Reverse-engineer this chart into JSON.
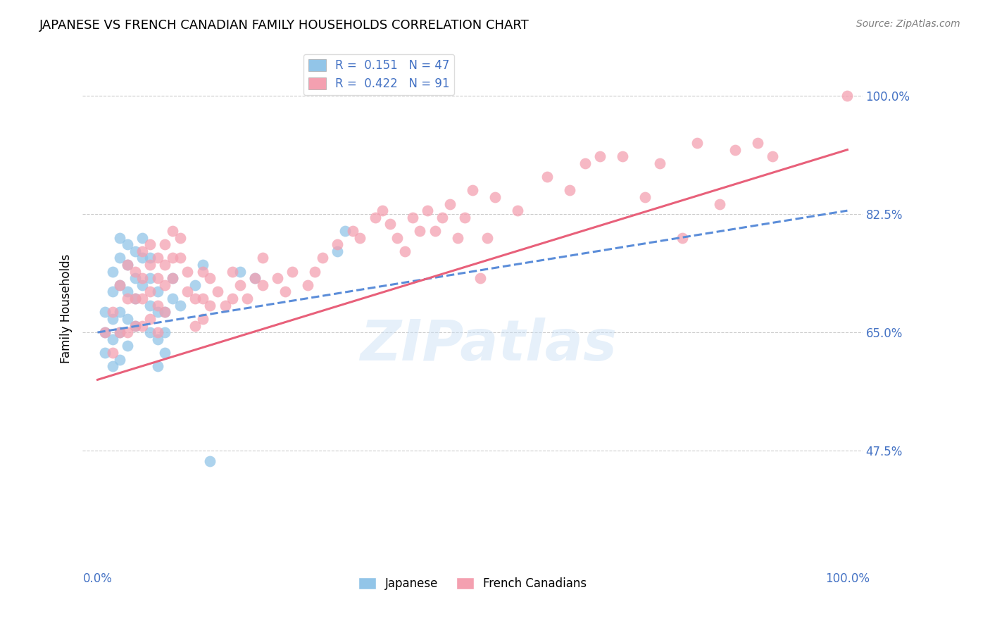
{
  "title": "JAPANESE VS FRENCH CANADIAN FAMILY HOUSEHOLDS CORRELATION CHART",
  "source": "Source: ZipAtlas.com",
  "ylabel": "Family Households",
  "watermark": "ZIPatlas",
  "xlim": [
    -2,
    102
  ],
  "ylim": [
    30,
    107
  ],
  "yticks": [
    47.5,
    65.0,
    82.5,
    100.0
  ],
  "ytick_labels": [
    "47.5%",
    "65.0%",
    "82.5%",
    "100.0%"
  ],
  "xtick_labels": [
    "0.0%",
    "100.0%"
  ],
  "japanese_R": 0.151,
  "japanese_N": 47,
  "french_R": 0.422,
  "french_N": 91,
  "japanese_color": "#92C5E8",
  "french_color": "#F4A0B0",
  "japanese_line_color": "#5B8DD9",
  "french_line_color": "#E8607A",
  "label_color": "#4472C4",
  "background_color": "#FFFFFF",
  "legend_label_japanese": "Japanese",
  "legend_label_french": "French Canadians",
  "jp_trend_start_y": 65.0,
  "jp_trend_end_y": 83.0,
  "fr_trend_start_y": 58.0,
  "fr_trend_end_y": 92.0,
  "japanese_x": [
    1,
    1,
    1,
    2,
    2,
    2,
    2,
    2,
    3,
    3,
    3,
    3,
    3,
    3,
    4,
    4,
    4,
    4,
    4,
    5,
    5,
    5,
    5,
    6,
    6,
    6,
    7,
    7,
    7,
    7,
    8,
    8,
    8,
    8,
    9,
    9,
    9,
    10,
    10,
    11,
    13,
    14,
    15,
    19,
    21,
    32,
    33
  ],
  "japanese_y": [
    68,
    65,
    62,
    74,
    71,
    67,
    64,
    60,
    79,
    76,
    72,
    68,
    65,
    61,
    78,
    75,
    71,
    67,
    63,
    77,
    73,
    70,
    66,
    79,
    76,
    72,
    76,
    73,
    69,
    65,
    71,
    68,
    64,
    60,
    68,
    65,
    62,
    73,
    70,
    69,
    72,
    75,
    46,
    74,
    73,
    77,
    80
  ],
  "french_x": [
    1,
    2,
    2,
    3,
    3,
    4,
    4,
    4,
    5,
    5,
    5,
    6,
    6,
    6,
    6,
    7,
    7,
    7,
    7,
    8,
    8,
    8,
    8,
    9,
    9,
    9,
    9,
    10,
    10,
    10,
    11,
    11,
    12,
    12,
    13,
    13,
    14,
    14,
    14,
    15,
    15,
    16,
    17,
    18,
    18,
    19,
    20,
    21,
    22,
    22,
    24,
    25,
    26,
    28,
    29,
    30,
    32,
    34,
    35,
    37,
    38,
    39,
    40,
    41,
    42,
    43,
    44,
    45,
    46,
    47,
    48,
    49,
    50,
    51,
    52,
    53,
    56,
    60,
    63,
    65,
    67,
    70,
    73,
    75,
    78,
    80,
    83,
    85,
    88,
    90,
    100
  ],
  "french_y": [
    65,
    68,
    62,
    72,
    65,
    75,
    70,
    65,
    74,
    70,
    66,
    77,
    73,
    70,
    66,
    78,
    75,
    71,
    67,
    76,
    73,
    69,
    65,
    78,
    75,
    72,
    68,
    80,
    76,
    73,
    79,
    76,
    74,
    71,
    70,
    66,
    74,
    70,
    67,
    73,
    69,
    71,
    69,
    74,
    70,
    72,
    70,
    73,
    76,
    72,
    73,
    71,
    74,
    72,
    74,
    76,
    78,
    80,
    79,
    82,
    83,
    81,
    79,
    77,
    82,
    80,
    83,
    80,
    82,
    84,
    79,
    82,
    86,
    73,
    79,
    85,
    83,
    88,
    86,
    90,
    91,
    91,
    85,
    90,
    79,
    93,
    84,
    92,
    93,
    91,
    100
  ]
}
